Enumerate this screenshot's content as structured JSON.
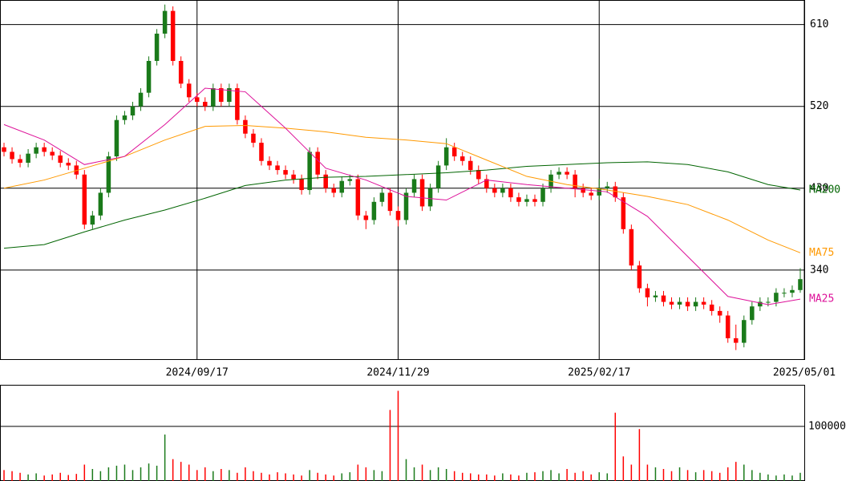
{
  "chart_data": [
    {
      "type": "candlestick",
      "xlim": [
        -0.5,
        99.5
      ],
      "xticks": [
        {
          "value": 24,
          "label": "2024/09/17"
        },
        {
          "value": 49,
          "label": "2024/11/29"
        },
        {
          "value": 74,
          "label": "2025/02/17"
        },
        {
          "value": 99.5,
          "label": "2025/05/01"
        }
      ],
      "ylim": [
        242,
        637
      ],
      "yticks": [
        340,
        430,
        520,
        610
      ],
      "grid": true,
      "up_color": "#1a7a1a",
      "down_color": "#ff0000",
      "open": [
        475,
        470,
        462,
        458,
        468,
        475,
        470,
        466,
        458,
        455,
        445,
        390,
        400,
        425,
        465,
        505,
        510,
        520,
        535,
        570,
        600,
        625,
        570,
        545,
        530,
        525,
        520,
        540,
        525,
        540,
        505,
        490,
        480,
        460,
        455,
        450,
        445,
        440,
        428,
        470,
        445,
        430,
        425,
        438,
        440,
        400,
        395,
        415,
        425,
        405,
        395,
        425,
        440,
        410,
        430,
        455,
        475,
        465,
        460,
        450,
        440,
        430,
        425,
        430,
        420,
        415,
        418,
        415,
        430,
        445,
        448,
        445,
        430,
        425,
        422,
        430,
        432,
        420,
        385,
        345,
        320,
        310,
        312,
        305,
        302,
        305,
        300,
        305,
        302,
        295,
        290,
        265,
        260,
        285,
        300,
        305,
        305,
        315,
        315,
        318
      ],
      "high": [
        480,
        475,
        467,
        473,
        480,
        480,
        475,
        471,
        463,
        460,
        450,
        405,
        430,
        470,
        510,
        515,
        525,
        540,
        575,
        605,
        632,
        630,
        575,
        550,
        535,
        530,
        545,
        545,
        545,
        545,
        510,
        495,
        485,
        465,
        460,
        455,
        450,
        445,
        475,
        475,
        450,
        435,
        443,
        445,
        445,
        405,
        420,
        430,
        430,
        410,
        430,
        445,
        445,
        435,
        460,
        485,
        480,
        470,
        465,
        455,
        445,
        435,
        435,
        435,
        425,
        423,
        423,
        435,
        450,
        453,
        453,
        450,
        435,
        430,
        440,
        437,
        437,
        425,
        390,
        350,
        325,
        317,
        317,
        310,
        310,
        310,
        310,
        310,
        307,
        300,
        295,
        280,
        290,
        305,
        310,
        310,
        320,
        320,
        323,
        342
      ],
      "low": [
        465,
        457,
        453,
        453,
        463,
        465,
        461,
        453,
        450,
        440,
        385,
        385,
        395,
        420,
        460,
        500,
        505,
        515,
        530,
        565,
        595,
        565,
        540,
        525,
        520,
        515,
        515,
        520,
        520,
        500,
        485,
        475,
        455,
        450,
        445,
        440,
        435,
        423,
        423,
        440,
        425,
        420,
        420,
        433,
        395,
        385,
        390,
        410,
        400,
        388,
        390,
        420,
        405,
        405,
        425,
        450,
        460,
        455,
        445,
        435,
        425,
        420,
        420,
        415,
        410,
        410,
        410,
        410,
        425,
        440,
        440,
        420,
        420,
        417,
        417,
        425,
        415,
        380,
        340,
        315,
        300,
        305,
        300,
        297,
        297,
        295,
        295,
        297,
        290,
        282,
        260,
        252,
        255,
        280,
        295,
        300,
        300,
        310,
        310,
        315
      ],
      "close": [
        470,
        462,
        458,
        468,
        475,
        470,
        466,
        458,
        455,
        445,
        390,
        400,
        425,
        465,
        505,
        510,
        520,
        535,
        570,
        600,
        625,
        570,
        545,
        530,
        525,
        520,
        540,
        525,
        540,
        505,
        490,
        480,
        460,
        455,
        450,
        445,
        440,
        428,
        470,
        445,
        430,
        425,
        438,
        440,
        400,
        395,
        415,
        425,
        405,
        395,
        425,
        440,
        410,
        430,
        455,
        475,
        465,
        460,
        450,
        440,
        430,
        425,
        430,
        420,
        415,
        418,
        415,
        430,
        445,
        448,
        445,
        430,
        425,
        422,
        430,
        432,
        420,
        385,
        345,
        320,
        310,
        312,
        305,
        302,
        305,
        300,
        305,
        302,
        295,
        290,
        265,
        260,
        285,
        300,
        305,
        305,
        315,
        315,
        318,
        330
      ],
      "series": [
        {
          "name": "MA200",
          "color": "#006400",
          "x": [
            0,
            5,
            10,
            15,
            20,
            25,
            30,
            35,
            40,
            45,
            50,
            55,
            60,
            65,
            70,
            75,
            80,
            85,
            90,
            95,
            99
          ],
          "values": [
            364,
            368,
            382,
            395,
            406,
            419,
            433,
            439,
            442,
            443,
            445,
            447,
            450,
            454,
            456,
            458,
            459,
            456,
            448,
            434,
            428
          ]
        },
        {
          "name": "MA75",
          "color": "#ff9900",
          "x": [
            0,
            5,
            10,
            15,
            20,
            25,
            30,
            35,
            40,
            45,
            50,
            55,
            60,
            65,
            70,
            75,
            80,
            85,
            90,
            95,
            99
          ],
          "values": [
            430,
            439,
            452,
            465,
            483,
            498,
            499,
            496,
            492,
            486,
            483,
            479,
            461,
            443,
            434,
            428,
            421,
            412,
            395,
            373,
            359
          ]
        },
        {
          "name": "MA25",
          "color": "#dd1199",
          "x": [
            0,
            5,
            10,
            15,
            20,
            25,
            30,
            35,
            40,
            45,
            50,
            55,
            60,
            65,
            70,
            75,
            80,
            85,
            90,
            95,
            99
          ],
          "values": [
            500,
            483,
            456,
            465,
            500,
            540,
            536,
            496,
            452,
            439,
            421,
            417,
            439,
            434,
            430,
            426,
            399,
            355,
            311,
            302,
            308
          ]
        }
      ]
    },
    {
      "type": "volume",
      "xlim": [
        -0.5,
        99.5
      ],
      "ylim": [
        0,
        176000
      ],
      "yticks": [
        100000
      ],
      "grid": true,
      "values": [
        20000,
        18000,
        15000,
        12000,
        14000,
        10000,
        12000,
        15000,
        11000,
        13000,
        30000,
        22000,
        18000,
        25000,
        28000,
        30000,
        20000,
        25000,
        32000,
        28000,
        85000,
        40000,
        35000,
        30000,
        20000,
        25000,
        18000,
        22000,
        20000,
        15000,
        25000,
        18000,
        15000,
        12000,
        16000,
        14000,
        12000,
        10000,
        20000,
        15000,
        12000,
        10000,
        14000,
        16000,
        30000,
        25000,
        20000,
        18000,
        130000,
        165000,
        40000,
        25000,
        30000,
        20000,
        25000,
        22000,
        18000,
        15000,
        14000,
        12000,
        12000,
        10000,
        14000,
        12000,
        10000,
        15000,
        16000,
        18000,
        20000,
        14000,
        22000,
        15000,
        18000,
        12000,
        16000,
        14000,
        125000,
        45000,
        30000,
        95000,
        30000,
        25000,
        22000,
        18000,
        25000,
        20000,
        16000,
        20000,
        18000,
        15000,
        25000,
        35000,
        30000,
        20000,
        15000,
        12000,
        10000,
        12000,
        10000,
        15000
      ]
    }
  ]
}
